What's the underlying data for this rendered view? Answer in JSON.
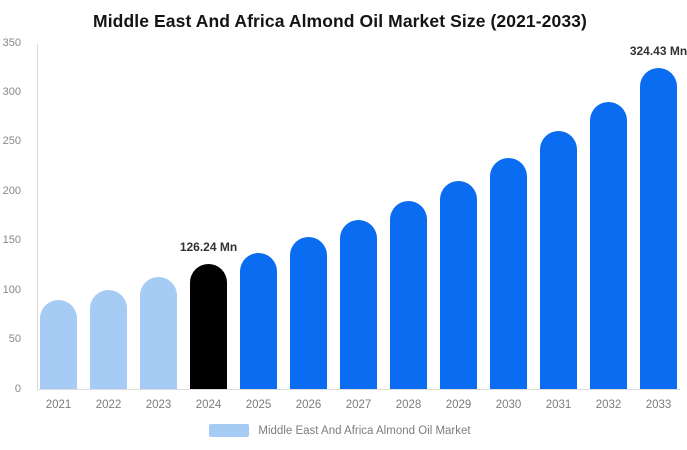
{
  "colors": {
    "background": "#ffffff",
    "past_bar": "#a6cbf5",
    "highlight_bar": "#000000",
    "forecast_bar": "#0a6cf0",
    "axis_line": "#d9d9d9",
    "tick_text": "#888888",
    "axis_label_text": "#7d7d7d",
    "data_label_text": "#333333",
    "title_text": "#141414"
  },
  "legend": {
    "label": "Middle East And Africa Almond Oil Market",
    "swatch_color": "#a6cbf5"
  },
  "chart_data": {
    "type": "bar",
    "title": "Middle East And Africa Almond Oil Market Size (2021-2033)",
    "categories": [
      "2021",
      "2022",
      "2023",
      "2024",
      "2025",
      "2026",
      "2027",
      "2028",
      "2029",
      "2030",
      "2031",
      "2032",
      "2033"
    ],
    "values": [
      90,
      100.5,
      113,
      126.24,
      138,
      153.5,
      171,
      190.5,
      210,
      234,
      261,
      290,
      324.43
    ],
    "unit": "Mn",
    "bar_colors": [
      "#a6cbf5",
      "#a6cbf5",
      "#a6cbf5",
      "#000000",
      "#0a6cf0",
      "#0a6cf0",
      "#0a6cf0",
      "#0a6cf0",
      "#0a6cf0",
      "#0a6cf0",
      "#0a6cf0",
      "#0a6cf0",
      "#0a6cf0"
    ],
    "data_labels": [
      {
        "category": "2024",
        "text": "126.24 Mn"
      },
      {
        "category": "2033",
        "text": "324.43 Mn"
      }
    ],
    "xlabel": "",
    "ylabel": "",
    "ylim": [
      0,
      350
    ],
    "yticks": [
      0,
      50,
      100,
      150,
      200,
      250,
      300,
      350
    ],
    "grid": false,
    "legend_position": "bottom",
    "legend_entries": [
      "Middle East And Africa Almond Oil Market"
    ]
  }
}
